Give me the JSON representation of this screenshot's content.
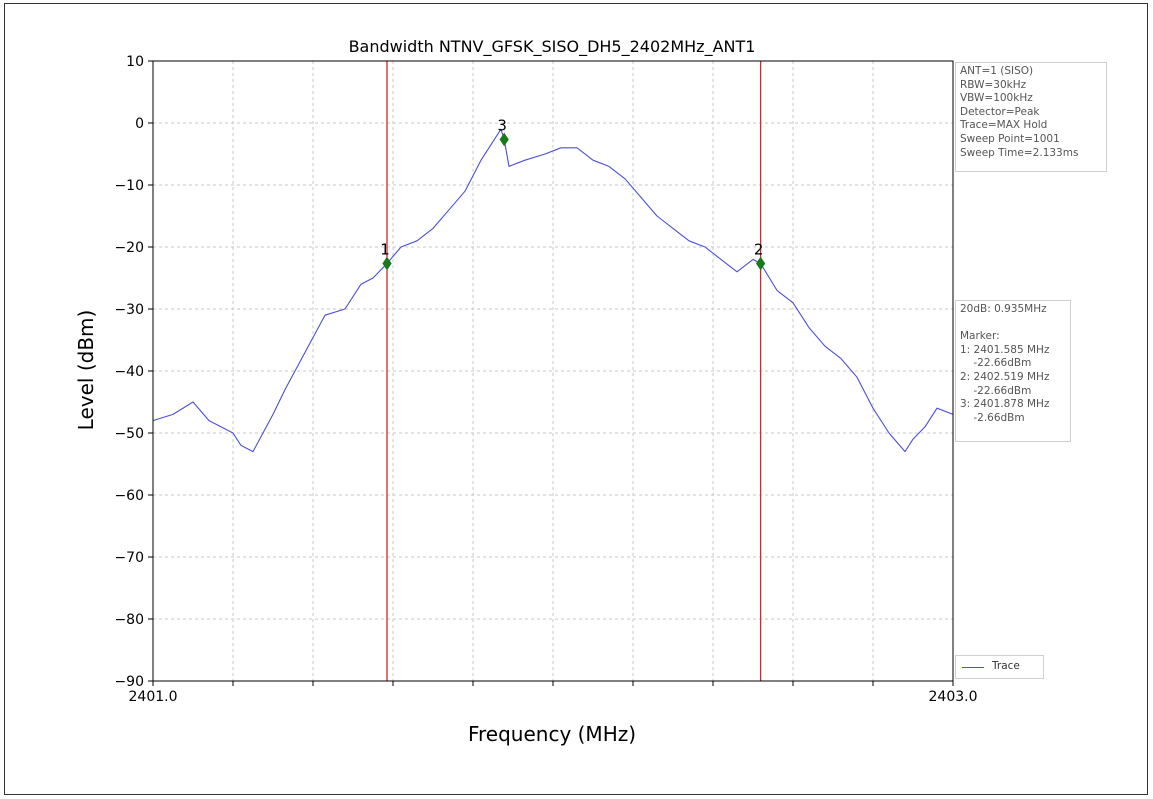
{
  "chart_data": {
    "type": "line",
    "title": "Bandwidth NTNV_GFSK_SISO_DH5_2402MHz_ANT1",
    "xlabel": "Frequency (MHz)",
    "ylabel": "Level (dBm)",
    "xlim": [
      2401.0,
      2403.0
    ],
    "ylim": [
      -90,
      10
    ],
    "x_tick_labels": [
      "2401.0",
      "2403.0"
    ],
    "y_ticks": [
      10,
      0,
      -10,
      -20,
      -30,
      -40,
      -50,
      -60,
      -70,
      -80,
      -90
    ],
    "y_tick_labels": [
      "10",
      "0",
      "−10",
      "−20",
      "−30",
      "−40",
      "−50",
      "−60",
      "−70",
      "−80",
      "−90"
    ],
    "grid": true,
    "legend": "bottom-right outside",
    "series": [
      {
        "name": "Trace",
        "color": "#4a50d8",
        "x": [
          2401.0,
          2401.05,
          2401.1,
          2401.14,
          2401.2,
          2401.22,
          2401.25,
          2401.3,
          2401.33,
          2401.38,
          2401.43,
          2401.48,
          2401.52,
          2401.55,
          2401.585,
          2401.62,
          2401.66,
          2401.7,
          2401.74,
          2401.78,
          2401.82,
          2401.85,
          2401.87,
          2401.878,
          2401.89,
          2401.93,
          2401.98,
          2402.02,
          2402.06,
          2402.1,
          2402.14,
          2402.18,
          2402.22,
          2402.26,
          2402.3,
          2402.34,
          2402.38,
          2402.42,
          2402.46,
          2402.5,
          2402.519,
          2402.56,
          2402.6,
          2402.64,
          2402.68,
          2402.72,
          2402.76,
          2402.8,
          2402.84,
          2402.88,
          2402.9,
          2402.93,
          2402.96,
          2403.0
        ],
        "y": [
          -48,
          -47,
          -45,
          -48,
          -50,
          -52,
          -53,
          -47,
          -43,
          -37,
          -31,
          -30,
          -26,
          -25,
          -22.66,
          -20,
          -19,
          -17,
          -14,
          -11,
          -6,
          -3,
          -1,
          -2.66,
          -7,
          -6,
          -5,
          -4,
          -4,
          -6,
          -7,
          -9,
          -12,
          -15,
          -17,
          -19,
          -20,
          -22,
          -24,
          -22,
          -22.66,
          -27,
          -29,
          -33,
          -36,
          -38,
          -41,
          -46,
          -50,
          -53,
          -51,
          -49,
          -46,
          -47
        ]
      }
    ],
    "markers": [
      {
        "label": "1",
        "x": 2401.585,
        "y": -22.66
      },
      {
        "label": "2",
        "x": 2402.519,
        "y": -22.66
      },
      {
        "label": "3",
        "x": 2401.878,
        "y": -2.66
      }
    ],
    "vlines": [
      2401.585,
      2402.519
    ]
  },
  "info": {
    "settings": [
      "ANT=1 (SISO)",
      "RBW=30kHz",
      "VBW=100kHz",
      "Detector=Peak",
      "Trace=MAX Hold",
      "Sweep Point=1001",
      "Sweep Time=2.133ms"
    ],
    "results": [
      "20dB: 0.935MHz",
      "",
      "Marker:",
      "1: 2401.585 MHz",
      "    -22.66dBm",
      "2: 2402.519 MHz",
      "    -22.66dBm",
      "3: 2401.878 MHz",
      "    -2.66dBm"
    ]
  },
  "colors": {
    "trace": "#4a50d8",
    "vline": "#d62728",
    "marker": "#1a7a1a",
    "grid": "#c8c8c8"
  }
}
